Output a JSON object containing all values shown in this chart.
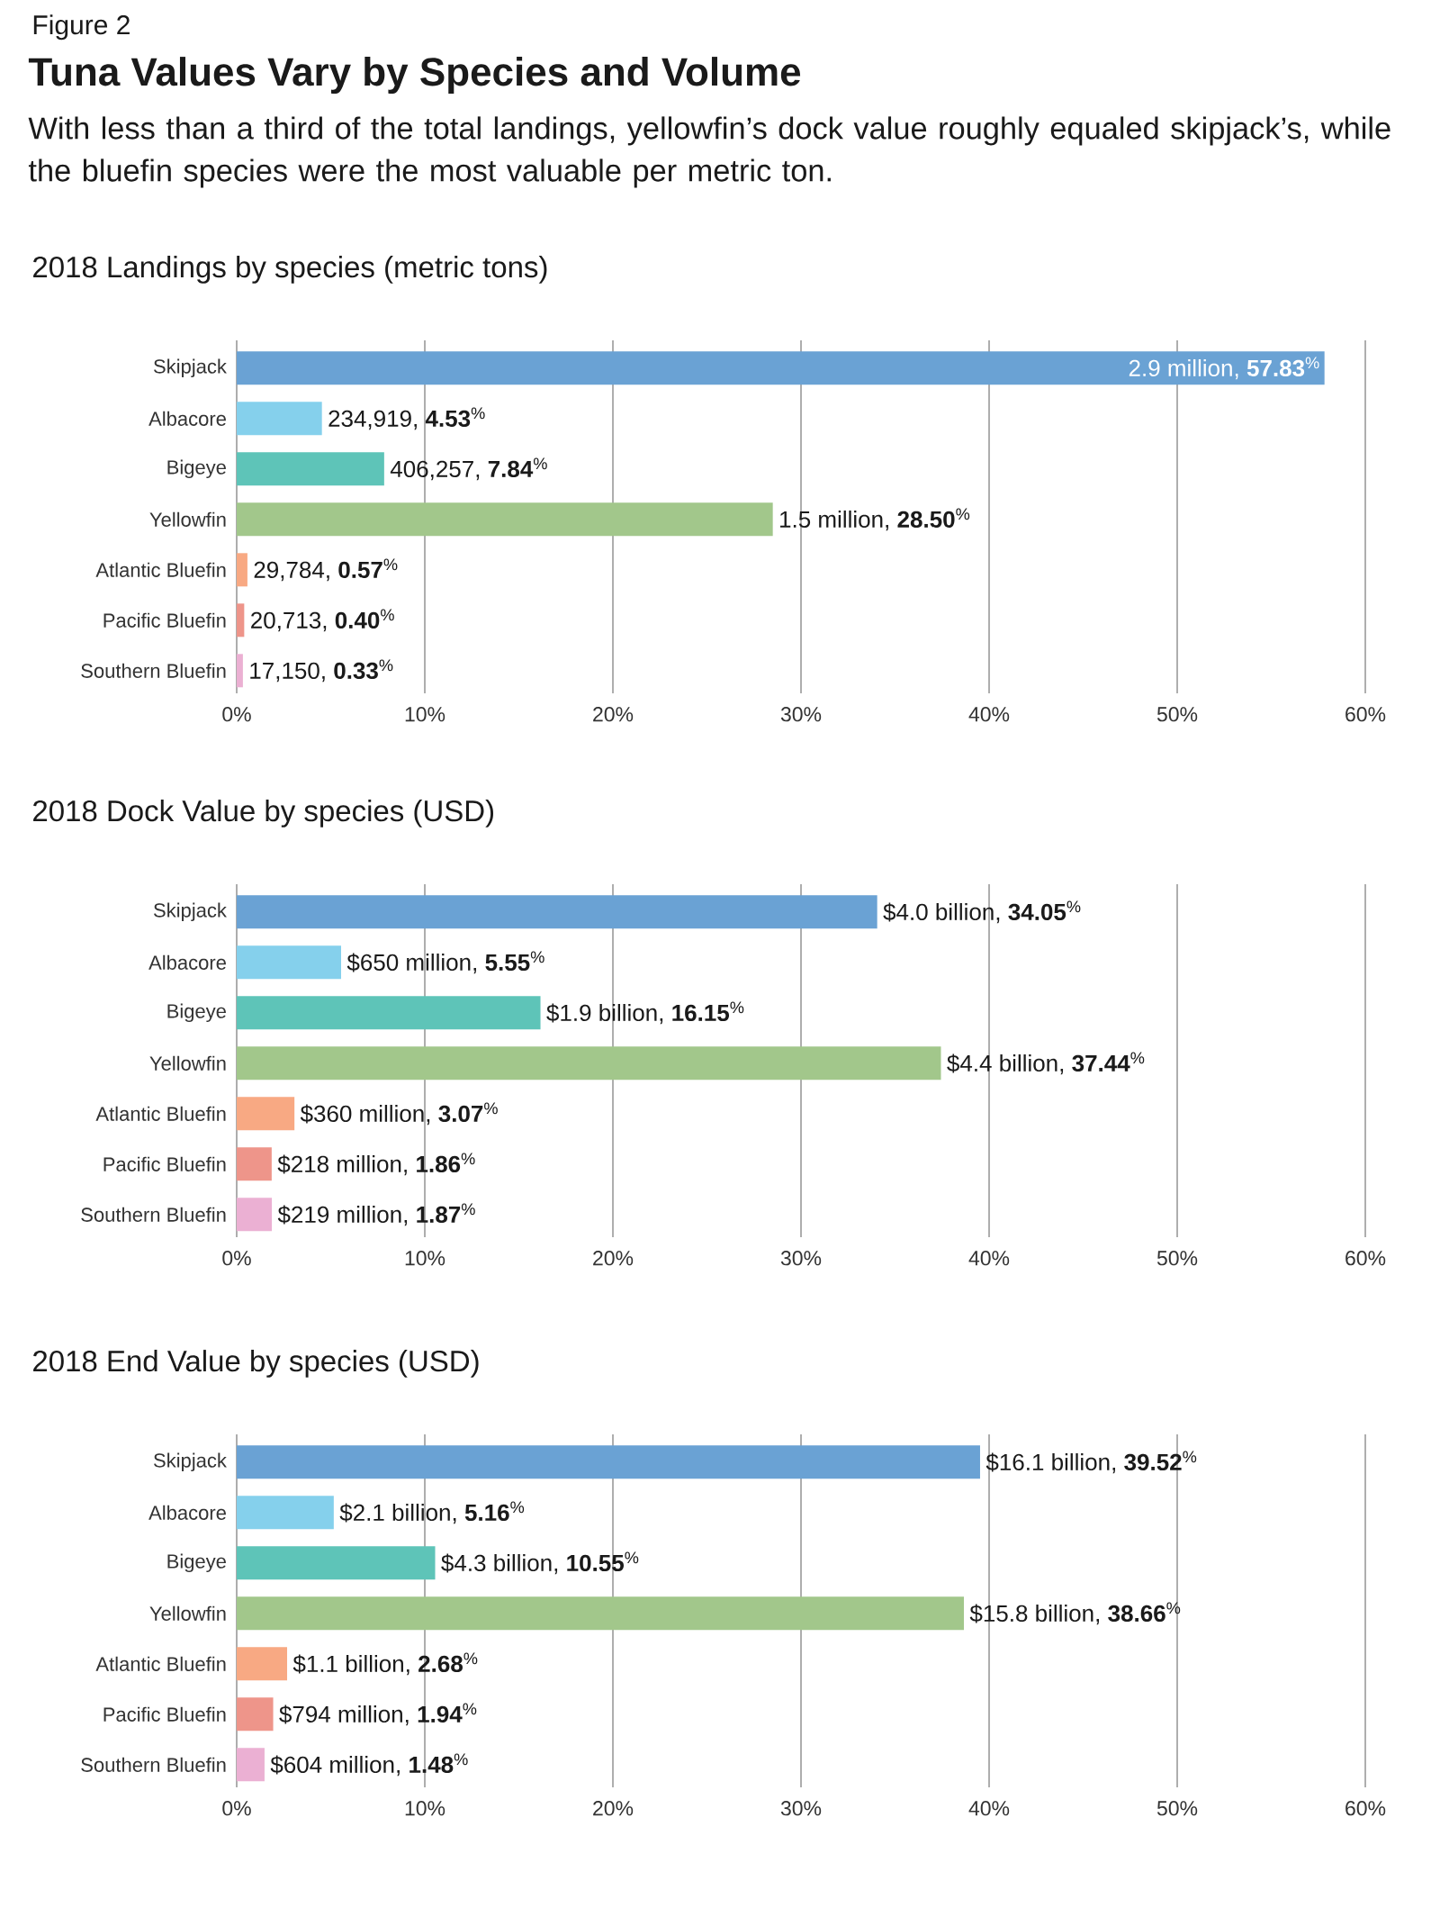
{
  "chart_data": [
    {
      "type": "other",
      "title": "Tuna Values Vary by Species and Volume",
      "subtitle": "With less than a third of the total landings, yellowfin’s dock value roughly equaled skipjack’s, while the bluefin species were the most valuable per metric ton.",
      "annotations": [
        "Figure 2"
      ]
    },
    {
      "type": "bar",
      "orientation": "horizontal",
      "title": "2018 Landings by species (metric tons)",
      "grid": "x",
      "categories": [
        "Skipjack",
        "Albacore",
        "Bigeye",
        "Yellowfin",
        "Atlantic Bluefin",
        "Pacific Bluefin",
        "Southern Bluefin"
      ],
      "values": [
        57.83,
        4.53,
        7.84,
        28.5,
        0.57,
        0.4,
        0.33
      ],
      "colors": [
        "#6aa2d4",
        "#85d0ec",
        "#5ec4b8",
        "#a2c78b",
        "#f8a983",
        "#ee958a",
        "#ebb0d3"
      ],
      "value_labels": [
        "2.9 million, **57.83**$^{%}$",
        "234,919, **4.53**$^{%}$",
        "406,257, **7.84**$^{%}$",
        "1.5 million, **28.50**$^{%}$",
        "29,784, **0.57**$^{%}$",
        "20,713, **0.40**$^{%}$",
        "17,150, **0.33**$^{%}$"
      ],
      "xlim": [
        0,
        60
      ],
      "xticks": [
        {
          "value": 0,
          "label": "0%"
        },
        {
          "value": 10,
          "label": "10%"
        },
        {
          "value": 20,
          "label": "20%"
        },
        {
          "value": 30,
          "label": "30%"
        },
        {
          "value": 40,
          "label": "40%"
        },
        {
          "value": 50,
          "label": "50%"
        },
        {
          "value": 60,
          "label": "60%"
        }
      ]
    },
    {
      "type": "bar",
      "orientation": "horizontal",
      "title": "2018 Dock Value by species (USD)",
      "grid": "x",
      "categories": [
        "Skipjack",
        "Albacore",
        "Bigeye",
        "Yellowfin",
        "Atlantic Bluefin",
        "Pacific Bluefin",
        "Southern Bluefin"
      ],
      "values": [
        34.05,
        5.55,
        16.15,
        37.44,
        3.07,
        1.86,
        1.87
      ],
      "colors": [
        "#6aa2d4",
        "#85d0ec",
        "#5ec4b8",
        "#a2c78b",
        "#f8a983",
        "#ee958a",
        "#ebb0d3"
      ],
      "value_labels": [
        "$4.0 billion, **34.05**$^{%}$",
        "$650 million, **5.55**$^{%}$",
        "$1.9 billion, **16.15**$^{%}$",
        "$4.4 billion, **37.44**$^{%}$",
        "$360 million, **3.07**$^{%}$",
        "$218 million, **1.86**$^{%}$",
        "$219 million, **1.87**$^{%}$"
      ],
      "xlim": [
        0,
        60
      ],
      "xticks": [
        {
          "value": 0,
          "label": "0%"
        },
        {
          "value": 10,
          "label": "10%"
        },
        {
          "value": 20,
          "label": "20%"
        },
        {
          "value": 30,
          "label": "30%"
        },
        {
          "value": 40,
          "label": "40%"
        },
        {
          "value": 50,
          "label": "50%"
        },
        {
          "value": 60,
          "label": "60%"
        }
      ]
    },
    {
      "type": "bar",
      "orientation": "horizontal",
      "title": "2018 End Value by species (USD)",
      "grid": "x",
      "categories": [
        "Skipjack",
        "Albacore",
        "Bigeye",
        "Yellowfin",
        "Atlantic Bluefin",
        "Pacific Bluefin",
        "Southern Bluefin"
      ],
      "values": [
        39.52,
        5.16,
        10.55,
        38.66,
        2.68,
        1.94,
        1.48
      ],
      "colors": [
        "#6aa2d4",
        "#85d0ec",
        "#5ec4b8",
        "#a2c78b",
        "#f8a983",
        "#ee958a",
        "#ebb0d3"
      ],
      "value_labels": [
        "$16.1 billion, **39.52**$^{%}$",
        "$2.1 billion, **5.16**$^{%}$",
        "$4.3 billion, **10.55**$^{%}$",
        "$15.8 billion, **38.66**$^{%}$",
        "$1.1 billion, **2.68**$^{%}$",
        "$794 million, **1.94**$^{%}$",
        "$604 million, **1.48**$^{%}$"
      ],
      "xlim": [
        0,
        60
      ],
      "xticks": [
        {
          "value": 0,
          "label": "0%"
        },
        {
          "value": 10,
          "label": "10%"
        },
        {
          "value": 20,
          "label": "20%"
        },
        {
          "value": 30,
          "label": "30%"
        },
        {
          "value": 40,
          "label": "40%"
        },
        {
          "value": 50,
          "label": "50%"
        },
        {
          "value": 60,
          "label": "60%"
        }
      ]
    }
  ]
}
